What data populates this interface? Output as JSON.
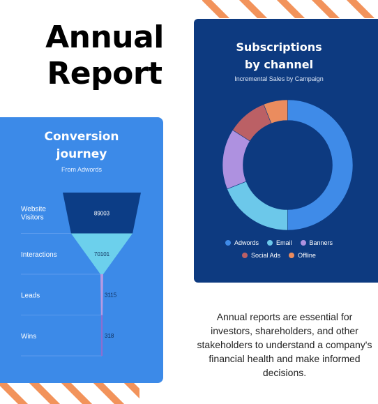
{
  "title": {
    "line1": "Annual",
    "line2": "Report"
  },
  "colors": {
    "stripe": "#f2935b",
    "funnel_card": "#3c8ae8",
    "channel_card": "#0d3a80",
    "funnel_stage_colors": [
      "#0c3d86",
      "#6cd0ec",
      "#b59ae3",
      "#8a6fd1"
    ]
  },
  "funnel": {
    "title_line1": "Conversion",
    "title_line2": "journey",
    "subtitle": "From Adwords"
  },
  "channel": {
    "title_line1": "Subscriptions",
    "title_line2": "by channel",
    "subtitle": "Incremental Sales by Campaign"
  },
  "body_text": "Annual reports are essential for investors, shareholders, and other stakeholders to understand a company's financial health and make informed decisions.",
  "chart_data": [
    {
      "type": "funnel",
      "categories": [
        "Website Visitors",
        "Interactions",
        "Leads",
        "Wins"
      ],
      "values": [
        89003,
        70101,
        3115,
        318
      ],
      "value_labels": [
        "89003",
        "70101",
        "3115",
        "318"
      ],
      "title": "Conversion journey",
      "subtitle": "From Adwords"
    },
    {
      "type": "pie",
      "donut": true,
      "title": "Subscriptions by channel",
      "subtitle": "Incremental Sales by Campaign",
      "categories": [
        "Adwords",
        "Email",
        "Banners",
        "Social Ads",
        "Offline"
      ],
      "values": [
        50,
        19,
        15,
        10,
        6
      ],
      "colors": [
        "#3f8be8",
        "#6cc8ea",
        "#ae91e0",
        "#bb6065",
        "#eb8c5e"
      ],
      "legend": "bottom"
    }
  ]
}
